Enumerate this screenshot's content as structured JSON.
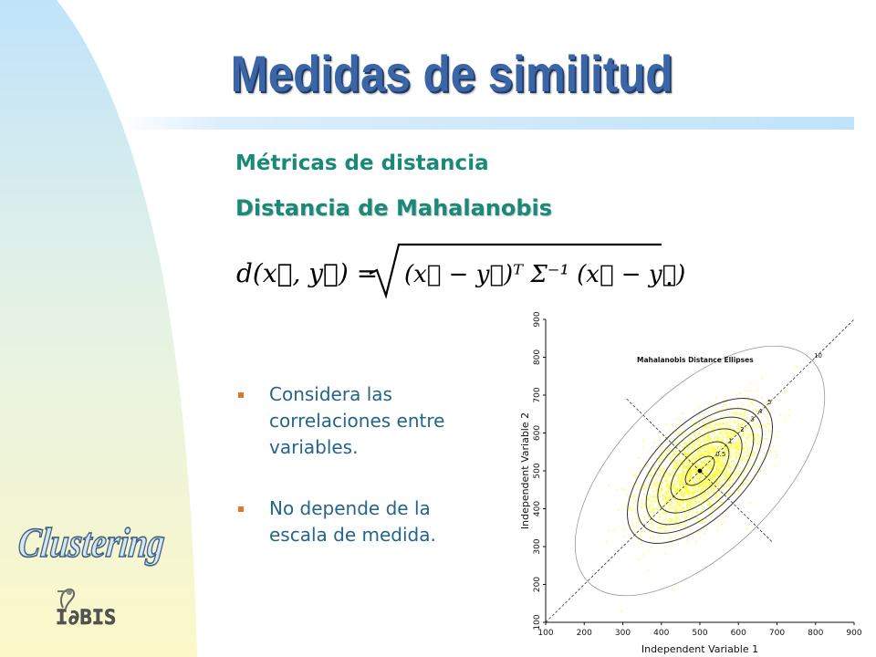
{
  "slide": {
    "title": "Medidas de similitud",
    "subtitle": "Métricas de distancia",
    "subtitle2": "Distancia de Mahalanobis",
    "formula": {
      "lhs": "d(x⃗, y⃗) =",
      "radicand": "(x⃗ − y⃗)ᵀ Σ⁻¹ (x⃗ − y⃗)",
      "tail": "."
    },
    "bullets": [
      {
        "text": "Considera las correlaciones entre variables."
      },
      {
        "text": "No depende de la escala de medida."
      }
    ],
    "side_banner": "Clustering",
    "logo_text": "I∂BIS"
  },
  "colors": {
    "title": "#3a66a8",
    "accent_text": "#1a8a78",
    "bullet_text": "#23658c",
    "bullet_mark": "#e07828",
    "side_gradient_top": "#bfe3fa",
    "side_gradient_bottom": "#fcf8c8",
    "scatter": "#ffff33"
  },
  "chart_data": {
    "type": "scatter",
    "title": "Mahalanobis Distance Ellipses",
    "xlabel": "Independent Variable 1",
    "ylabel": "Independent Variable 2",
    "xlim": [
      100,
      900
    ],
    "ylim": [
      100,
      900
    ],
    "xticks": [
      100,
      200,
      300,
      400,
      500,
      600,
      700,
      800,
      900
    ],
    "yticks": [
      100,
      200,
      300,
      400,
      500,
      600,
      700,
      800,
      900
    ],
    "center": [
      500,
      500
    ],
    "ellipse_levels": [
      "0.5",
      "1",
      "2",
      "3",
      "4",
      "5",
      "10"
    ]
  }
}
